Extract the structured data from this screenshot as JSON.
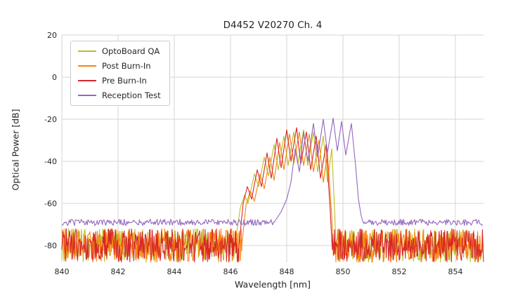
{
  "chart_data": {
    "type": "line",
    "title": "D4452 V20270 Ch. 4",
    "xlabel": "Wavelength [nm]",
    "ylabel": "Optical Power [dB]",
    "xlim": [
      840,
      855
    ],
    "ylim": [
      -88,
      20
    ],
    "x_ticks": [
      840,
      842,
      844,
      846,
      848,
      850,
      852,
      854
    ],
    "y_ticks": [
      20,
      0,
      -20,
      -40,
      -60,
      -80
    ],
    "grid": true,
    "grid_color": "#d5d5d5",
    "legend_position": "upper-left",
    "series": [
      {
        "name": "OptoBoard QA",
        "color": "#bcbd22",
        "noise_floor": -80,
        "noise_amplitude": 8,
        "signal_points": [
          [
            846.15,
            -80
          ],
          [
            846.35,
            -62
          ],
          [
            846.5,
            -56
          ],
          [
            846.62,
            -60
          ],
          [
            846.85,
            -46
          ],
          [
            847.0,
            -52
          ],
          [
            847.2,
            -38
          ],
          [
            847.35,
            -47
          ],
          [
            847.55,
            -32
          ],
          [
            847.7,
            -44
          ],
          [
            847.9,
            -28
          ],
          [
            848.05,
            -42
          ],
          [
            848.25,
            -26
          ],
          [
            848.4,
            -41
          ],
          [
            848.6,
            -25
          ],
          [
            848.75,
            -42
          ],
          [
            848.95,
            -26
          ],
          [
            849.1,
            -45
          ],
          [
            849.3,
            -28
          ],
          [
            849.45,
            -50
          ],
          [
            849.6,
            -34
          ],
          [
            849.7,
            -62
          ],
          [
            849.75,
            -80
          ]
        ]
      },
      {
        "name": "Post Burn-In",
        "color": "#ff7f0e",
        "noise_floor": -80,
        "noise_amplitude": 8,
        "signal_points": [
          [
            846.4,
            -80
          ],
          [
            846.55,
            -61
          ],
          [
            846.7,
            -54
          ],
          [
            846.85,
            -59
          ],
          [
            847.05,
            -46
          ],
          [
            847.2,
            -53
          ],
          [
            847.4,
            -38
          ],
          [
            847.55,
            -49
          ],
          [
            847.75,
            -31
          ],
          [
            847.9,
            -44
          ],
          [
            848.1,
            -27
          ],
          [
            848.25,
            -41
          ],
          [
            848.45,
            -26
          ],
          [
            848.6,
            -42
          ],
          [
            848.8,
            -27
          ],
          [
            848.95,
            -45
          ],
          [
            849.15,
            -30
          ],
          [
            849.3,
            -50
          ],
          [
            849.45,
            -36
          ],
          [
            849.6,
            -66
          ],
          [
            849.65,
            -80
          ]
        ]
      },
      {
        "name": "Pre Burn-In",
        "color": "#d62728",
        "noise_floor": -80,
        "noise_amplitude": 8,
        "signal_points": [
          [
            846.3,
            -80
          ],
          [
            846.45,
            -60
          ],
          [
            846.6,
            -52
          ],
          [
            846.75,
            -58
          ],
          [
            846.95,
            -44
          ],
          [
            847.1,
            -52
          ],
          [
            847.3,
            -36
          ],
          [
            847.45,
            -48
          ],
          [
            847.65,
            -29
          ],
          [
            847.8,
            -43
          ],
          [
            848.0,
            -25
          ],
          [
            848.15,
            -40
          ],
          [
            848.35,
            -24
          ],
          [
            848.5,
            -41
          ],
          [
            848.7,
            -26
          ],
          [
            848.85,
            -44
          ],
          [
            849.05,
            -28
          ],
          [
            849.2,
            -48
          ],
          [
            849.4,
            -32
          ],
          [
            849.55,
            -64
          ],
          [
            849.62,
            -82
          ]
        ]
      },
      {
        "name": "Reception Test",
        "color": "#9467bd",
        "noise_floor": -69,
        "noise_amplitude": 1.5,
        "signal_points": [
          [
            847.55,
            -69
          ],
          [
            847.8,
            -64
          ],
          [
            848.0,
            -58
          ],
          [
            848.15,
            -50
          ],
          [
            848.3,
            -34
          ],
          [
            848.45,
            -45
          ],
          [
            848.6,
            -26
          ],
          [
            848.75,
            -40
          ],
          [
            848.95,
            -22
          ],
          [
            849.1,
            -38
          ],
          [
            849.3,
            -20
          ],
          [
            849.45,
            -36
          ],
          [
            849.65,
            -19.5
          ],
          [
            849.8,
            -35
          ],
          [
            849.95,
            -21
          ],
          [
            850.1,
            -37
          ],
          [
            850.3,
            -22
          ],
          [
            850.45,
            -42
          ],
          [
            850.55,
            -58
          ],
          [
            850.65,
            -66
          ],
          [
            850.72,
            -69
          ]
        ]
      }
    ]
  }
}
